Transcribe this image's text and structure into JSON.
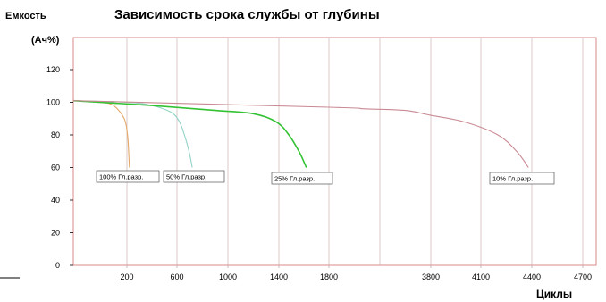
{
  "chart_data": {
    "type": "line",
    "title": "Зависимость срока службы от глубины",
    "ylabel": "Емкость",
    "yunit": "(Ач%)",
    "xlabel": "Циклы",
    "x_tick_labels": [
      "200",
      "600",
      "1000",
      "1400",
      "1800",
      "3800",
      "4100",
      "4400",
      "4700"
    ],
    "y_ticks": [
      0,
      20,
      40,
      60,
      80,
      100,
      120
    ],
    "ylim": [
      0,
      140
    ],
    "grid": true,
    "colors": {
      "plot_border": "#d98a8a",
      "grid": "#c9a6a6",
      "series": [
        "#e2a868",
        "#8fd3c5",
        "#33c233",
        "#c98a94"
      ]
    },
    "series": [
      {
        "name": "100% Гл.разр.",
        "points": [
          [
            0,
            101
          ],
          [
            100,
            100
          ],
          [
            150,
            98
          ],
          [
            190,
            90
          ],
          [
            205,
            80
          ],
          [
            215,
            68
          ],
          [
            220,
            60
          ]
        ]
      },
      {
        "name": "50% Гл.разр.",
        "points": [
          [
            0,
            101
          ],
          [
            200,
            100
          ],
          [
            400,
            98
          ],
          [
            550,
            94
          ],
          [
            620,
            88
          ],
          [
            670,
            77
          ],
          [
            700,
            68
          ],
          [
            720,
            60
          ]
        ]
      },
      {
        "name": "25% Гл.разр.",
        "points": [
          [
            0,
            101
          ],
          [
            400,
            98
          ],
          [
            900,
            95
          ],
          [
            1200,
            93
          ],
          [
            1380,
            88
          ],
          [
            1480,
            80
          ],
          [
            1560,
            70
          ],
          [
            1620,
            60
          ]
        ]
      },
      {
        "name": "10% Гл.разр.",
        "points": [
          [
            0,
            101
          ],
          [
            1800,
            97
          ],
          [
            2500,
            96
          ],
          [
            3300,
            95
          ],
          [
            3800,
            92
          ],
          [
            4000,
            88
          ],
          [
            4200,
            80
          ],
          [
            4310,
            70
          ],
          [
            4380,
            60
          ]
        ]
      }
    ]
  }
}
